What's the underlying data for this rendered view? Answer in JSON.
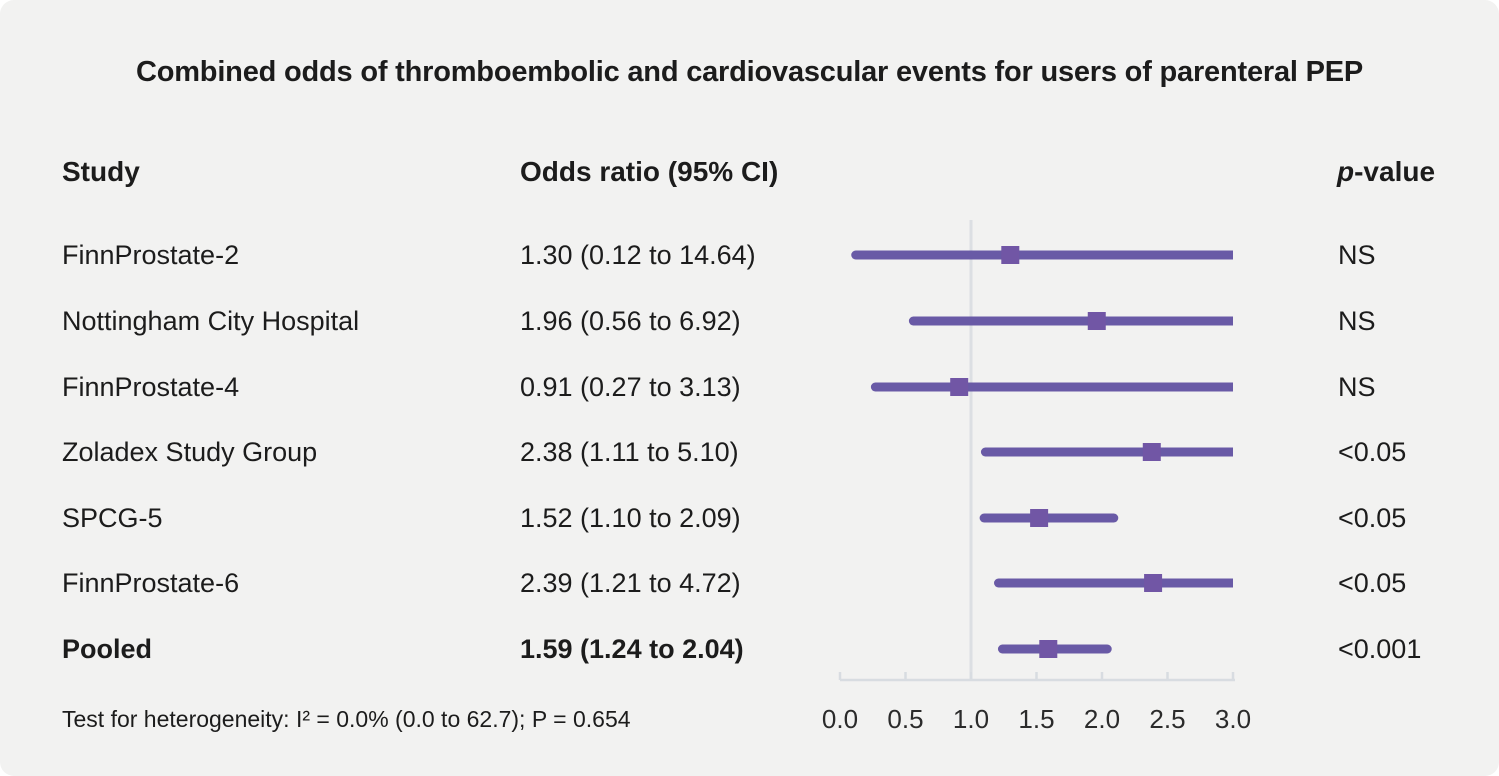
{
  "title": "Combined odds of thromboembolic and cardiovascular events for users of parenteral PEP",
  "columns": {
    "study": "Study",
    "odds_ratio": "Odds ratio (95% CI)",
    "p_value_italic": "p",
    "p_value_suffix": "-value"
  },
  "footer": "Test for heterogeneity: I² = 0.0% (0.0 to 62.7); P = 0.654",
  "chart_data": {
    "type": "forest",
    "title": "Combined odds of thromboembolic and cardiovascular events for users of parenteral PEP",
    "xlabel": "Odds ratio",
    "x_axis": {
      "range": [
        0.0,
        3.0
      ],
      "ticks": [
        "0.0",
        "0.5",
        "1.0",
        "1.5",
        "2.0",
        "2.5",
        "3.0"
      ],
      "tick_values": [
        0.0,
        0.5,
        1.0,
        1.5,
        2.0,
        2.5,
        3.0
      ],
      "reference_line": 1.0
    },
    "colors": {
      "ci_line": "#695aa6",
      "marker": "#7156a5",
      "axis": "#d8dce1",
      "reference_line": "#dcdfe3",
      "background": "#f2f2f1",
      "text": "#1c1c1c"
    },
    "rows": [
      {
        "study": "FinnProstate-2",
        "or_text": "1.30 (0.12 to 14.64)",
        "or": 1.3,
        "ci_low": 0.12,
        "ci_high": 14.64,
        "p": "NS"
      },
      {
        "study": "Nottingham City Hospital",
        "or_text": "1.96 (0.56 to 6.92)",
        "or": 1.96,
        "ci_low": 0.56,
        "ci_high": 6.92,
        "p": "NS"
      },
      {
        "study": "FinnProstate-4",
        "or_text": "0.91 (0.27 to 3.13)",
        "or": 0.91,
        "ci_low": 0.27,
        "ci_high": 3.13,
        "p": "NS"
      },
      {
        "study": "Zoladex Study Group",
        "or_text": "2.38 (1.11 to 5.10)",
        "or": 2.38,
        "ci_low": 1.11,
        "ci_high": 5.1,
        "p": "<0.05"
      },
      {
        "study": "SPCG-5",
        "or_text": "1.52 (1.10 to 2.09)",
        "or": 1.52,
        "ci_low": 1.1,
        "ci_high": 2.09,
        "p": "<0.05"
      },
      {
        "study": "FinnProstate-6",
        "or_text": "2.39 (1.21 to 4.72)",
        "or": 2.39,
        "ci_low": 1.21,
        "ci_high": 4.72,
        "p": "<0.05"
      },
      {
        "study": "Pooled",
        "or_text": "1.59 (1.24 to 2.04)",
        "or": 1.59,
        "ci_low": 1.24,
        "ci_high": 2.04,
        "p": "<0.001",
        "pooled": true
      }
    ],
    "heterogeneity": "Test for heterogeneity: I² = 0.0% (0.0 to 62.7); P = 0.654",
    "legend": "none",
    "grid": "off"
  }
}
